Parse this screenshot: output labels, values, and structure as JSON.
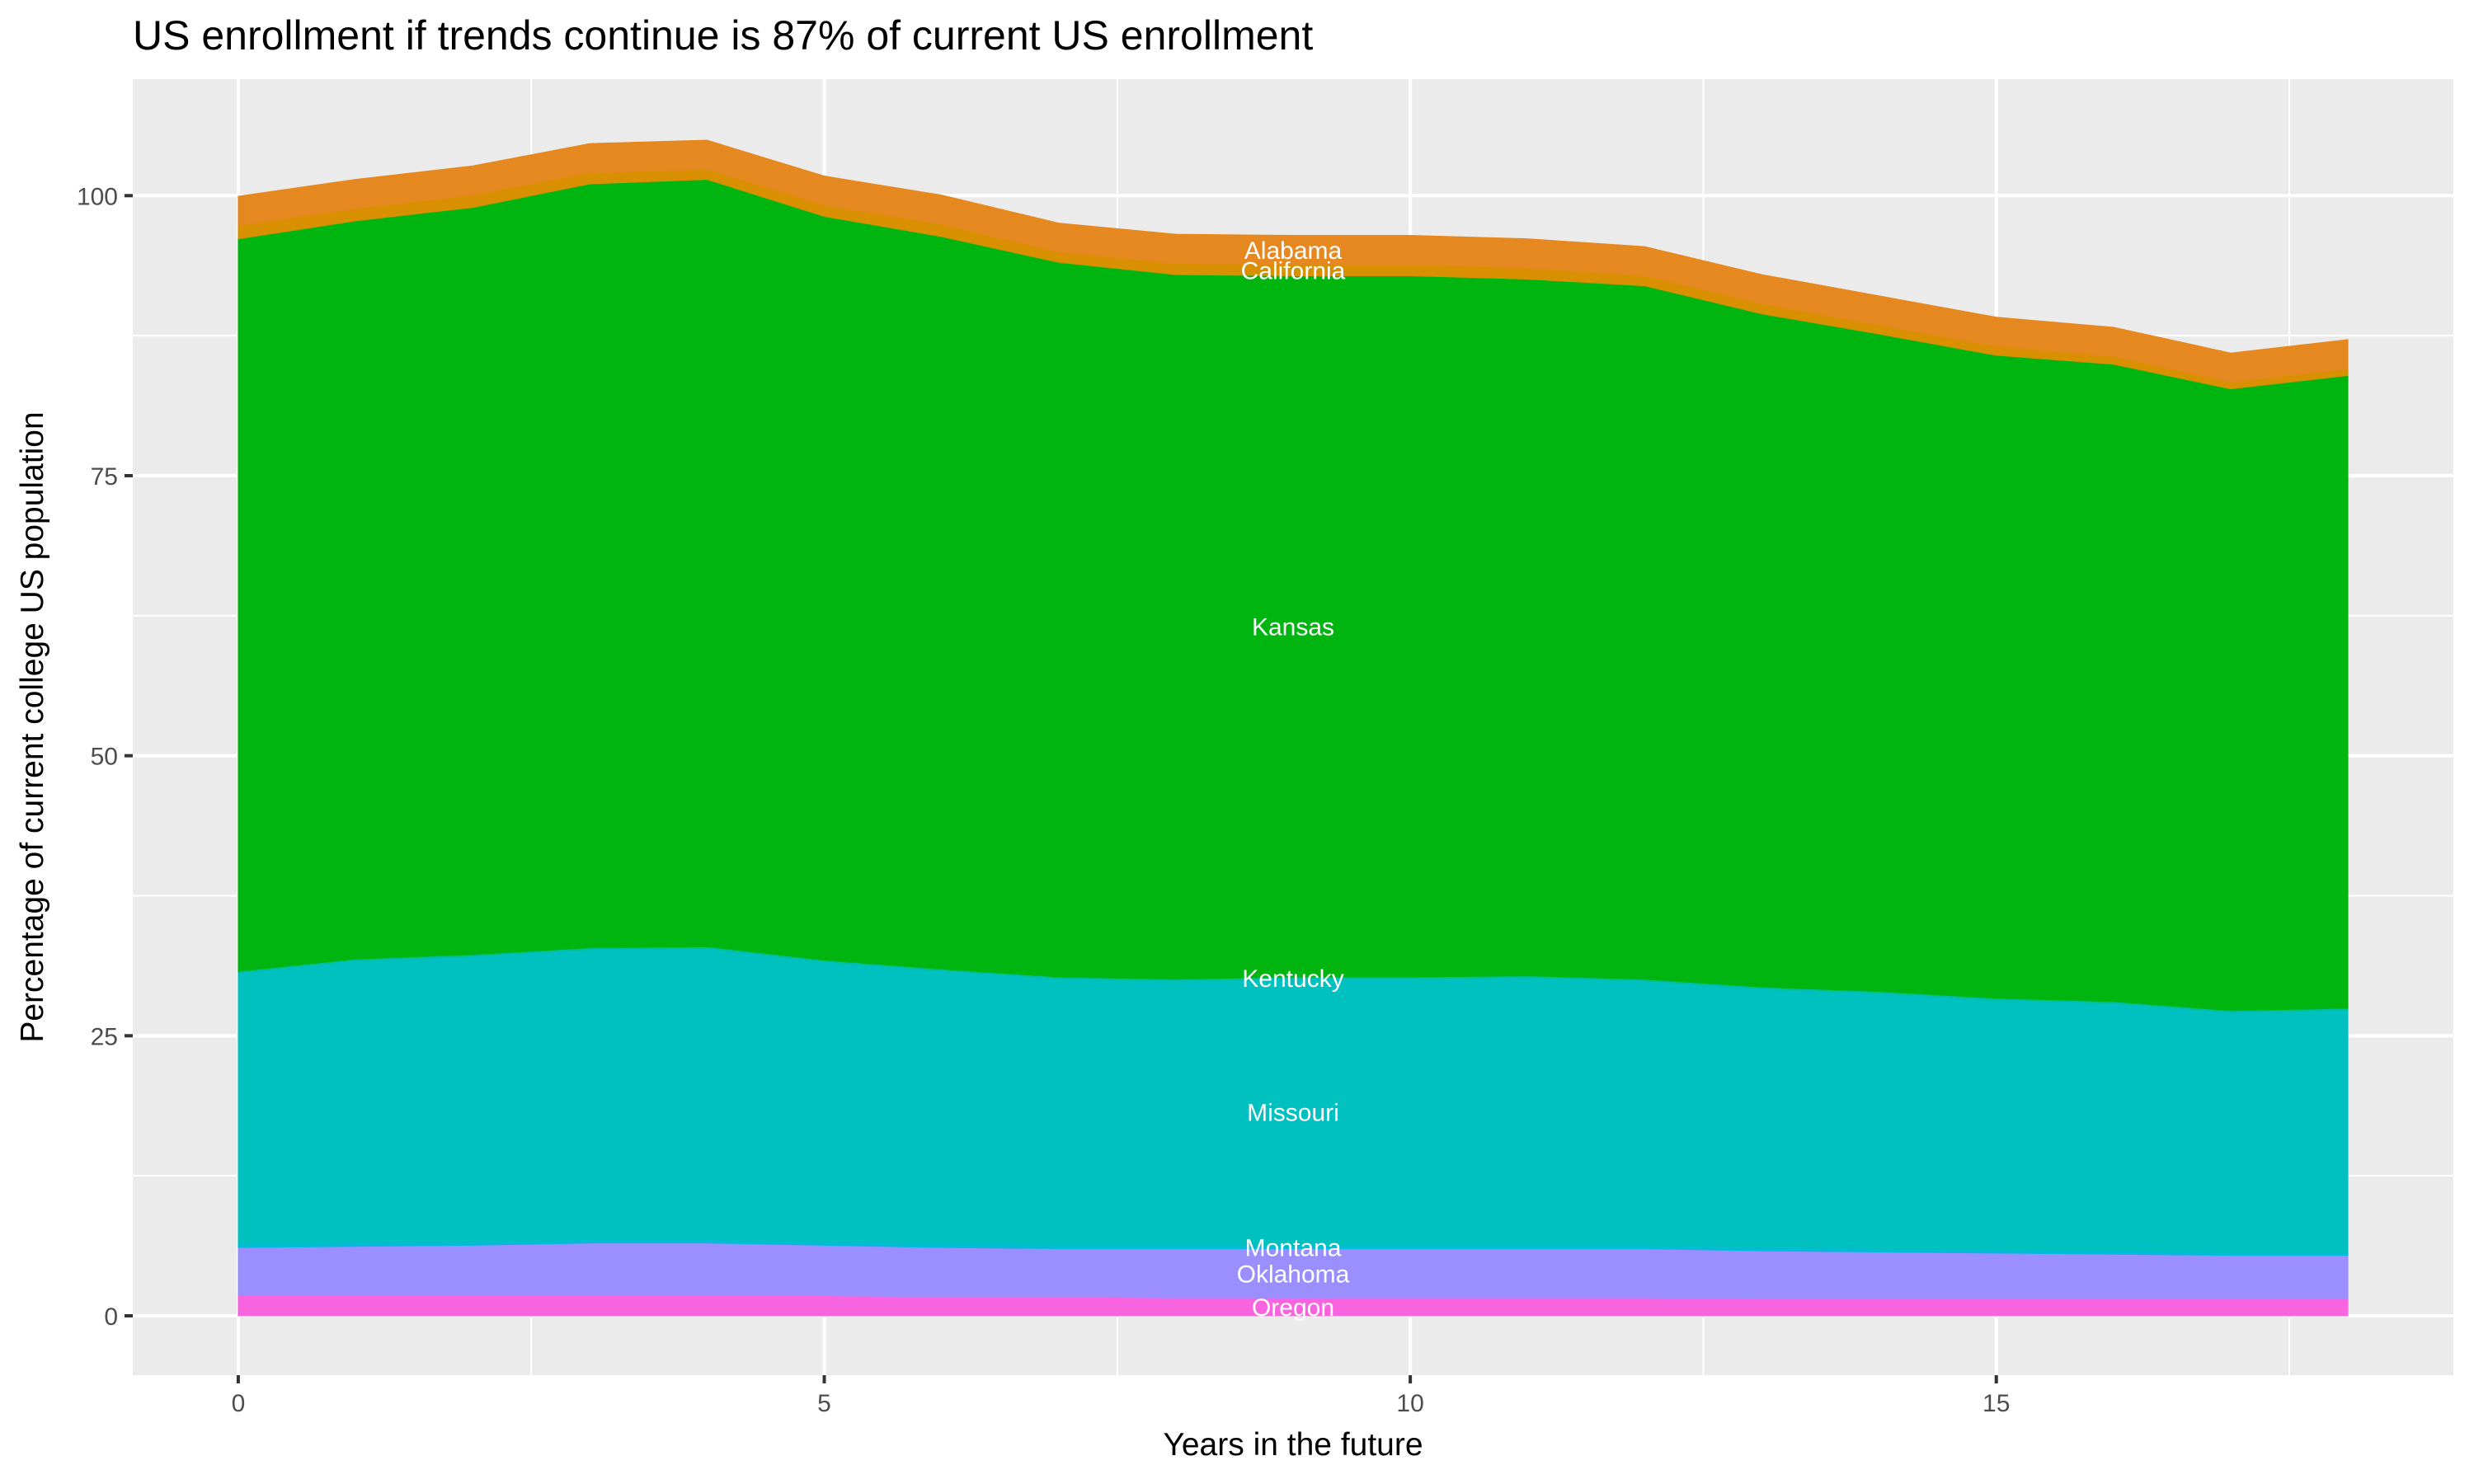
{
  "chart_data": {
    "type": "area",
    "stacked": true,
    "title": "US enrollment if trends continue is 87% of current US enrollment",
    "xlabel": "Years in the future",
    "ylabel": "Percentage of current college US population",
    "xlim": [
      -0.9,
      18.9
    ],
    "ylim": [
      -5.3,
      110.4
    ],
    "x_ticks": [
      0,
      5,
      10,
      15
    ],
    "y_ticks": [
      0,
      25,
      50,
      75,
      100
    ],
    "grid": true,
    "background": "#EBEBEB",
    "label_x": 9,
    "x": [
      0,
      1,
      2,
      3,
      4,
      5,
      6,
      7,
      8,
      9,
      10,
      11,
      12,
      13,
      14,
      15,
      16,
      17,
      18
    ],
    "series": [
      {
        "name": "Oregon",
        "color": "#F863DF",
        "values": [
          1.8,
          1.8,
          1.8,
          1.8,
          1.8,
          1.8,
          1.7,
          1.7,
          1.6,
          1.6,
          1.6,
          1.6,
          1.6,
          1.5,
          1.5,
          1.5,
          1.5,
          1.5,
          1.5
        ]
      },
      {
        "name": "Oklahoma",
        "color": "#9B8EFF",
        "values": [
          4.3,
          4.4,
          4.5,
          4.7,
          4.7,
          4.5,
          4.4,
          4.3,
          4.4,
          4.4,
          4.4,
          4.4,
          4.4,
          4.3,
          4.2,
          4.1,
          4.0,
          3.9,
          3.9
        ]
      },
      {
        "name": "Montana",
        "color": "#00BCD6",
        "values": [
          0.3,
          0.3,
          0.3,
          0.3,
          0.3,
          0.3,
          0.3,
          0.3,
          0.3,
          0.3,
          0.3,
          0.3,
          0.3,
          0.3,
          0.3,
          0.3,
          0.3,
          0.3,
          0.3
        ]
      },
      {
        "name": "Missouri",
        "color": "#00C0C0",
        "values": [
          24.2,
          25.2,
          25.5,
          25.9,
          26.0,
          25.0,
          24.4,
          23.8,
          23.6,
          23.8,
          23.8,
          23.9,
          23.6,
          23.1,
          22.8,
          22.3,
          22.1,
          21.4,
          21.6
        ]
      },
      {
        "name": "Kentucky",
        "color": "#00C0A0",
        "values": [
          0.15,
          0.15,
          0.15,
          0.15,
          0.15,
          0.15,
          0.15,
          0.15,
          0.15,
          0.15,
          0.15,
          0.15,
          0.15,
          0.15,
          0.15,
          0.15,
          0.15,
          0.15,
          0.15
        ]
      },
      {
        "name": "Kansas",
        "color": "#00B50F",
        "values": [
          65.4,
          65.9,
          66.7,
          68.2,
          68.5,
          66.4,
          65.4,
          63.8,
          62.9,
          62.6,
          62.6,
          62.2,
          61.9,
          60.1,
          58.7,
          57.4,
          56.9,
          55.5,
          56.5
        ]
      },
      {
        "name": "California",
        "color": "#D89000",
        "values": [
          1.2,
          1.1,
          1.1,
          1.0,
          0.9,
          1.0,
          1.1,
          0.9,
          1.0,
          1.0,
          1.0,
          1.0,
          0.9,
          0.9,
          0.8,
          0.8,
          0.7,
          0.6,
          0.6
        ]
      },
      {
        "name": "Alabama",
        "color": "#E68820",
        "values": [
          2.6,
          2.6,
          2.6,
          2.6,
          2.6,
          2.6,
          2.6,
          2.6,
          2.6,
          2.6,
          2.6,
          2.6,
          2.6,
          2.6,
          2.6,
          2.6,
          2.6,
          2.6,
          2.6
        ]
      }
    ]
  }
}
